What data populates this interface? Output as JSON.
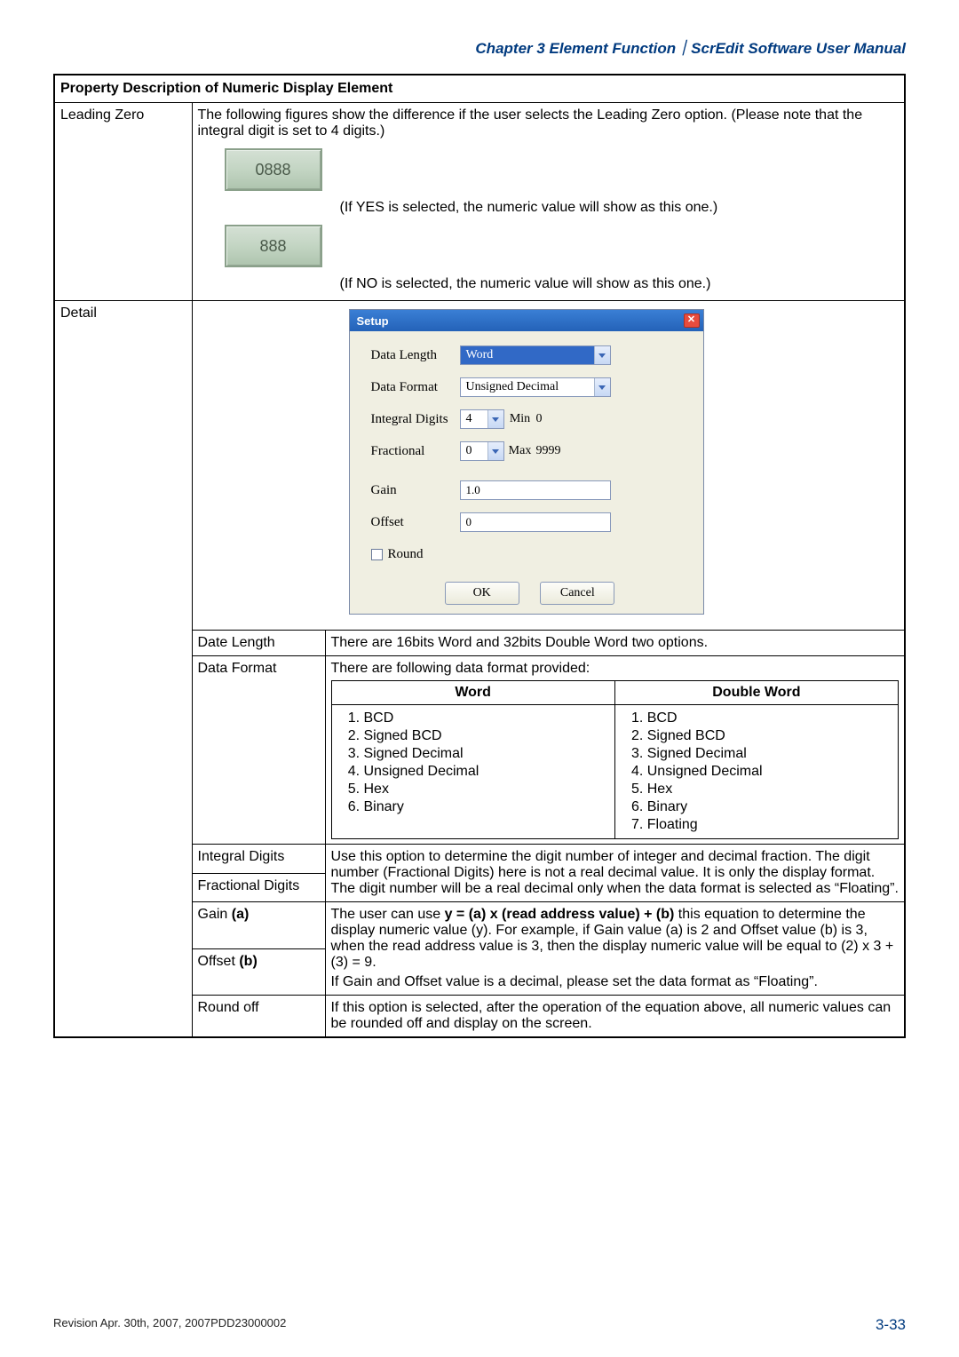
{
  "chapter_header": "Chapter 3  Element Function｜ScrEdit Software User Manual",
  "table_title": "Property Description of Numeric Display Element",
  "leading_zero": {
    "label": "Leading Zero",
    "intro": "The following figures show the difference if the user selects the Leading Zero option. (Please note that the integral digit is set to 4 digits.)",
    "box_yes": "0888",
    "text_yes": "(If YES is selected, the numeric value will show as this one.)",
    "box_no": "888",
    "text_no": "(If NO is selected, the numeric value will show as this one.)"
  },
  "detail": {
    "label": "Detail",
    "dialog": {
      "title": "Setup",
      "data_length_label": "Data Length",
      "data_length_value": "Word",
      "data_format_label": "Data Format",
      "data_format_value": "Unsigned Decimal",
      "integral_label": "Integral Digits",
      "integral_value": "4",
      "min_label": "Min",
      "min_value": "0",
      "fractional_label": "Fractional",
      "fractional_value": "0",
      "max_label": "Max",
      "max_value": "9999",
      "gain_label": "Gain",
      "gain_value": "1.0",
      "offset_label": "Offset",
      "offset_value": "0",
      "round_label": "Round",
      "ok": "OK",
      "cancel": "Cancel"
    },
    "rows": {
      "date_length": {
        "label": "Date Length",
        "text": "There are 16bits Word and 32bits Double Word two options."
      },
      "data_format": {
        "label": "Data Format",
        "text": "There are following data format provided:",
        "word_header": "Word",
        "dword_header": "Double Word",
        "word_list": [
          "BCD",
          "Signed BCD",
          "Signed Decimal",
          "Unsigned Decimal",
          "Hex",
          "Binary"
        ],
        "dword_list": [
          "BCD",
          "Signed BCD",
          "Signed Decimal",
          "Unsigned Decimal",
          "Hex",
          "Binary",
          "Floating"
        ]
      },
      "integral_digits": {
        "label": "Integral Digits",
        "text": "Use this option to determine the digit number of integer and decimal fraction. The digit number (Fractional Digits) here is not a real decimal value. It is only the display format. The digit number will be a real decimal only when the data format is selected as “Floating”."
      },
      "fractional_digits": {
        "label": "Fractional Digits"
      },
      "gain": {
        "label": "Gain (a)",
        "text_pre": "The user can use ",
        "formula": "y = (a) x (read address value) + (b)",
        "text_mid": " this equation to determine the display numeric value (y). For example, if Gain value (a) is 2 and Offset value (b) is 3, when the read address value is 3, then the display numeric value will be equal to (2)  x 3 + (3)  =  9.",
        "text2": "If Gain and Offset value is a decimal, please set the data format as “Floating”."
      },
      "offset": {
        "label": "Offset (b)"
      },
      "round": {
        "label": "Round off",
        "text": "If this option is selected, after the operation of the equation above, all numeric values can be rounded off and display on the screen."
      }
    }
  },
  "footer": {
    "revision": "Revision Apr. 30th, 2007, 2007PDD23000002",
    "page": "3-33"
  }
}
